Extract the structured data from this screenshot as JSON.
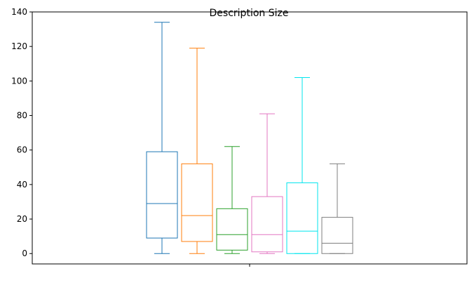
{
  "chart_data": {
    "type": "box",
    "title": "Description Size",
    "xlabel": "",
    "ylabel": "",
    "ylim": [
      -6,
      140
    ],
    "yticks": [
      0,
      20,
      40,
      60,
      80,
      100,
      120,
      140
    ],
    "xticks": [
      ""
    ],
    "grid": false,
    "series": [
      {
        "color": "#1f77b4",
        "whisker_low": 0,
        "q1": 9,
        "median": 29,
        "q3": 59,
        "whisker_high": 134
      },
      {
        "color": "#ff7f0e",
        "whisker_low": 0,
        "q1": 7,
        "median": 22,
        "q3": 52,
        "whisker_high": 119
      },
      {
        "color": "#2ca02c",
        "whisker_low": 0,
        "q1": 2,
        "median": 11,
        "q3": 26,
        "whisker_high": 62
      },
      {
        "color": "#e377c2",
        "whisker_low": 0,
        "q1": 1,
        "median": 11,
        "q3": 33,
        "whisker_high": 81
      },
      {
        "color": "#00e5ee",
        "whisker_low": 0,
        "q1": 0,
        "median": 13,
        "q3": 41,
        "whisker_high": 102
      },
      {
        "color": "#7f7f7f",
        "whisker_low": 0,
        "q1": 0,
        "median": 6,
        "q3": 21,
        "whisker_high": 52
      }
    ]
  }
}
